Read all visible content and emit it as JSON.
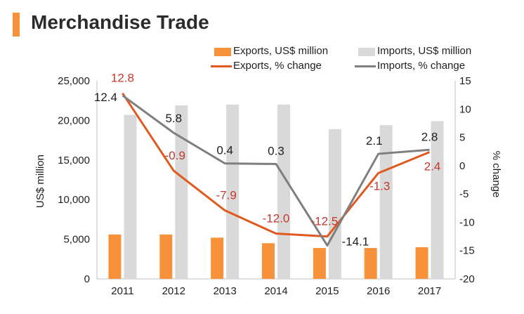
{
  "page": {
    "title": "Merchandise Trade",
    "colors": {
      "accent": "#f7923a",
      "imports_bar": "#d9d9d9",
      "exports_line": "#e05a1f",
      "imports_line": "#7f7f7f",
      "export_label": "#c0392b"
    }
  },
  "legend": {
    "exports_bar": "Exports, US$ million",
    "imports_bar": "Imports, US$ million",
    "exports_line": "Exports, % change",
    "imports_line": "Imports, % change"
  },
  "chart_data": {
    "type": "bar",
    "title": "Merchandise Trade",
    "categories": [
      "2011",
      "2012",
      "2013",
      "2014",
      "2015",
      "2016",
      "2017"
    ],
    "ylabel": "US$ million",
    "y2label": "% change",
    "ylim": [
      0,
      25000
    ],
    "y2lim": [
      -20,
      15
    ],
    "yticks": [
      "0",
      "5,000",
      "10,000",
      "15,000",
      "20,000",
      "25,000"
    ],
    "y2ticks": [
      "-20",
      "-15",
      "-10",
      "-5",
      "0",
      "5",
      "10",
      "15"
    ],
    "grid": false,
    "legend_position": "top",
    "series": [
      {
        "name": "Exports, US$ million",
        "kind": "bar",
        "axis": "left",
        "color": "#f7923a",
        "values": [
          5600,
          5600,
          5200,
          4500,
          3900,
          3900,
          4000
        ]
      },
      {
        "name": "Imports, US$ million",
        "kind": "bar",
        "axis": "left",
        "color": "#d9d9d9",
        "values": [
          20700,
          21900,
          22000,
          22000,
          18900,
          19400,
          19900
        ]
      },
      {
        "name": "Exports, % change",
        "kind": "line",
        "axis": "right",
        "color": "#e05a1f",
        "values": [
          12.8,
          -0.9,
          -7.9,
          -12.0,
          -12.5,
          -1.3,
          2.4
        ],
        "labels": [
          "12.8",
          "-0.9",
          "-7.9",
          "-12.0",
          "-12.5",
          "-1.3",
          "2.4"
        ]
      },
      {
        "name": "Imports, % change",
        "kind": "line",
        "axis": "right",
        "color": "#7f7f7f",
        "values": [
          12.4,
          5.8,
          0.4,
          0.3,
          -14.1,
          2.1,
          2.8
        ],
        "labels": [
          "12.4",
          "5.8",
          "0.4",
          "0.3",
          "-14.1",
          "2.1",
          "2.8"
        ]
      }
    ]
  }
}
